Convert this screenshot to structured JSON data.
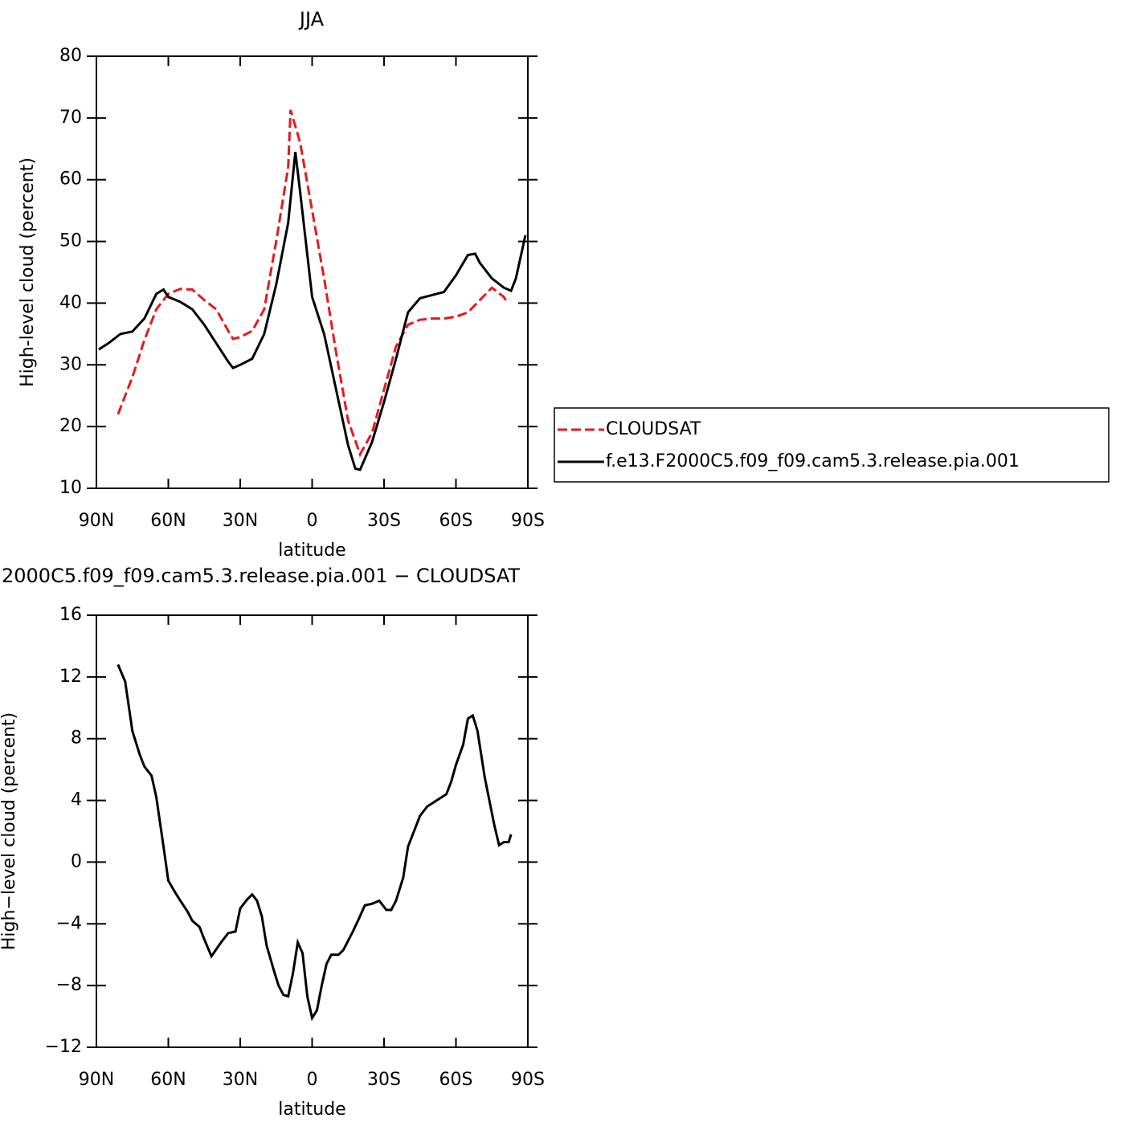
{
  "chart_data": [
    {
      "type": "line",
      "title": "JJA",
      "xlabel": "latitude",
      "ylabel": "High-level cloud (percent)",
      "xlim": [
        90,
        -90
      ],
      "xticks": [
        {
          "value": 90,
          "label": "90N"
        },
        {
          "value": 60,
          "label": "60N"
        },
        {
          "value": 30,
          "label": "30N"
        },
        0,
        {
          "value": -30,
          "label": "30S"
        },
        {
          "value": -60,
          "label": "60S"
        },
        {
          "value": -90,
          "label": "90S"
        }
      ],
      "ylim": [
        10,
        80
      ],
      "yticks": [
        10,
        20,
        30,
        40,
        50,
        60,
        70,
        80
      ],
      "legend": "right",
      "series": [
        {
          "name": "CLOUDSAT",
          "color": "#e41a1c",
          "style": "dashed",
          "x": [
            81,
            75,
            70,
            65,
            60,
            55,
            50,
            45,
            40,
            35,
            33,
            30,
            25,
            20,
            15,
            10,
            9,
            5,
            0,
            -5,
            -10,
            -15,
            -20,
            -25,
            -30,
            -35,
            -40,
            -45,
            -50,
            -55,
            -60,
            -65,
            -70,
            -75,
            -80,
            -81
          ],
          "values": [
            22,
            28,
            34,
            39,
            41.5,
            42.3,
            42.2,
            40.5,
            39,
            35.5,
            34.2,
            34.5,
            35.5,
            39,
            50,
            62,
            71.3,
            66,
            55,
            44,
            32,
            21,
            15.5,
            19,
            26,
            33,
            36.5,
            37.3,
            37.5,
            37.5,
            37.8,
            38.5,
            40.5,
            42.5,
            41,
            40.3
          ]
        },
        {
          "name": "f.e13.F2000C5.f09_f09.cam5.3.release.pia.001",
          "color": "#000000",
          "style": "solid",
          "x": [
            89,
            85,
            80,
            75,
            70,
            65,
            62,
            60,
            55,
            50,
            45,
            40,
            35,
            33,
            30,
            25,
            20,
            15,
            10,
            7,
            5,
            0,
            -5,
            -10,
            -15,
            -18,
            -20,
            -25,
            -30,
            -35,
            -40,
            -45,
            -50,
            -55,
            -60,
            -65,
            -68,
            -70,
            -75,
            -80,
            -83,
            -85,
            -89
          ],
          "values": [
            32.5,
            33.5,
            35,
            35.4,
            37.5,
            41.5,
            42.2,
            41,
            40.2,
            39,
            36.5,
            33.5,
            30.5,
            29.5,
            30,
            31,
            35,
            43,
            53,
            64.5,
            58,
            41,
            35,
            26,
            17,
            13.2,
            13,
            17.5,
            24,
            31,
            38.5,
            40.8,
            41.3,
            41.8,
            44.5,
            47.8,
            48,
            46.5,
            44,
            42.5,
            42,
            44,
            51
          ]
        }
      ]
    },
    {
      "type": "line",
      "title": "2000C5.f09_f09.cam5.3.release.pia.001  −  CLOUDSAT",
      "xlabel": "latitude",
      "ylabel": "High−level cloud (percent)",
      "xlim": [
        90,
        -90
      ],
      "xticks": [
        {
          "value": 90,
          "label": "90N"
        },
        {
          "value": 60,
          "label": "60N"
        },
        {
          "value": 30,
          "label": "30N"
        },
        0,
        {
          "value": -30,
          "label": "30S"
        },
        {
          "value": -60,
          "label": "60S"
        },
        {
          "value": -90,
          "label": "90S"
        }
      ],
      "ylim": [
        -12,
        16
      ],
      "yticks": [
        {
          "value": -12,
          "label": "−12"
        },
        {
          "value": -8,
          "label": "−8"
        },
        {
          "value": -4,
          "label": "−4"
        },
        0,
        4,
        8,
        12,
        16
      ],
      "series": [
        {
          "color": "#000000",
          "style": "solid",
          "x": [
            81,
            78,
            75,
            72,
            70,
            67,
            65,
            62,
            60,
            57,
            55,
            52,
            50,
            47,
            45,
            42,
            38,
            35,
            32,
            30,
            27,
            25,
            23,
            21,
            19,
            16,
            14,
            12,
            10,
            8,
            6,
            4,
            2,
            0,
            -2,
            -4,
            -6,
            -8,
            -11,
            -13,
            -17,
            -20,
            -22,
            -25,
            -28,
            -31,
            -33,
            -35,
            -38,
            -40,
            -43,
            -45,
            -48,
            -50,
            -53,
            -56,
            -58,
            -60,
            -63,
            -65,
            -67,
            -69,
            -72,
            -76,
            -78,
            -80,
            -82,
            -83
          ],
          "values": [
            12.8,
            11.7,
            8.5,
            7,
            6.2,
            5.6,
            4.2,
            1,
            -1.2,
            -2,
            -2.5,
            -3.2,
            -3.8,
            -4.2,
            -5,
            -6.1,
            -5.2,
            -4.6,
            -4.5,
            -3,
            -2.4,
            -2.1,
            -2.5,
            -3.5,
            -5.4,
            -7,
            -8,
            -8.6,
            -8.7,
            -7.2,
            -5.2,
            -5.9,
            -8.7,
            -10.1,
            -9.6,
            -8,
            -6.6,
            -6,
            -6,
            -5.7,
            -4.5,
            -3.5,
            -2.8,
            -2.7,
            -2.5,
            -3.1,
            -3.1,
            -2.5,
            -1,
            1,
            2.2,
            3,
            3.6,
            3.8,
            4.1,
            4.4,
            5.2,
            6.3,
            7.6,
            9.3,
            9.5,
            8.5,
            5.5,
            2.4,
            1.1,
            1.3,
            1.3,
            1.8
          ]
        }
      ]
    }
  ]
}
